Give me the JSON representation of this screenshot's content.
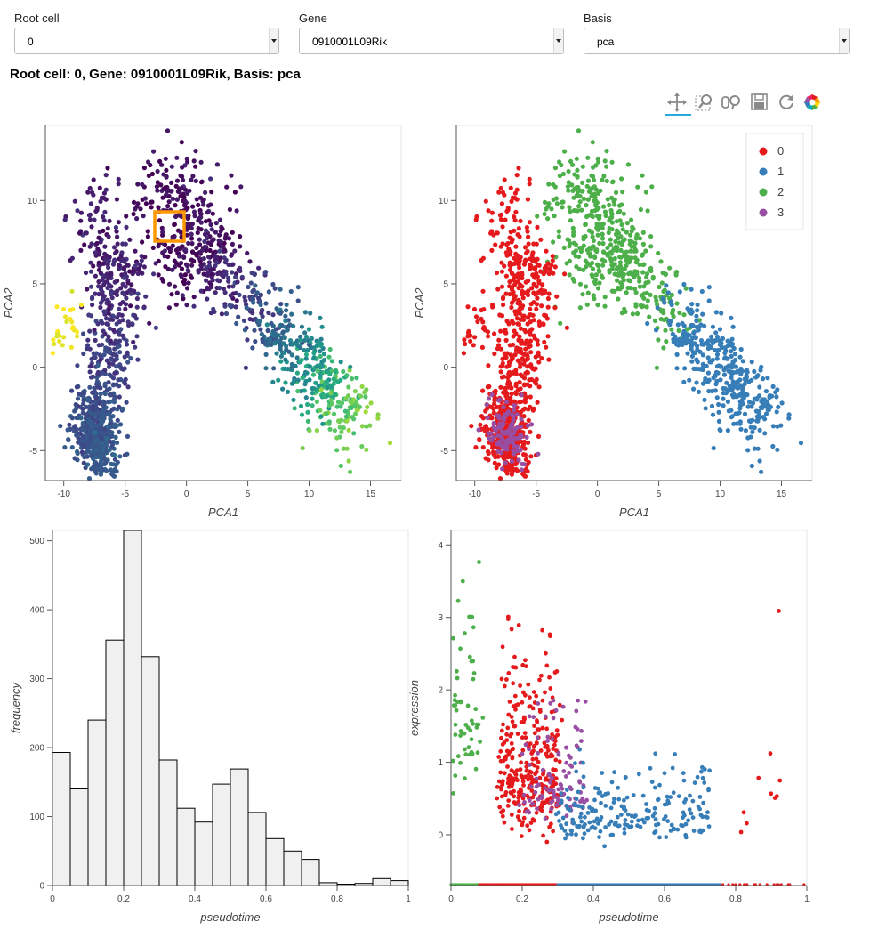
{
  "controls": {
    "root_cell": {
      "label": "Root cell",
      "value": "0"
    },
    "gene": {
      "label": "Gene",
      "value": "0910001L09Rik"
    },
    "basis": {
      "label": "Basis",
      "value": "pca"
    }
  },
  "title": "Root cell: 0, Gene: 0910001L09Rik, Basis: pca",
  "toolbar": {
    "icons": [
      "pan-icon",
      "box-zoom-icon",
      "wheel-zoom-icon",
      "save-icon",
      "reset-icon",
      "bokeh-logo-icon"
    ]
  },
  "colors": {
    "cluster_0": "#e41a1c",
    "cluster_1": "#377eb8",
    "cluster_2": "#4daf4a",
    "cluster_3": "#984ea3",
    "root_marker": "#ff9800",
    "hist_fill": "#f0f0f0"
  },
  "chart_data": [
    {
      "type": "scatter",
      "id": "pca-pseudotime",
      "xlabel": "PCA1",
      "ylabel": "PCA2",
      "xlim": [
        -11.5,
        17.5
      ],
      "ylim": [
        -6.8,
        14.5
      ],
      "xticks": [
        "-10",
        "-5",
        "0",
        "5",
        "10",
        "15"
      ],
      "yticks": [
        "-5",
        "0",
        "5",
        "10"
      ],
      "color_by": "pseudotime (viridis)",
      "root_cell": {
        "x": -1.3,
        "y": 8.3
      }
    },
    {
      "type": "scatter",
      "id": "pca-clusters",
      "xlabel": "PCA1",
      "ylabel": "PCA2",
      "xlim": [
        -11.5,
        17.5
      ],
      "ylim": [
        -6.8,
        14.5
      ],
      "xticks": [
        "-10",
        "-5",
        "0",
        "5",
        "10",
        "15"
      ],
      "yticks": [
        "-5",
        "0",
        "5",
        "10"
      ],
      "legend": [
        "0",
        "1",
        "2",
        "3"
      ],
      "legend_position": "top-right"
    },
    {
      "type": "bar",
      "id": "pseudotime-histogram",
      "xlabel": "pseudotime",
      "ylabel": "frequency",
      "xlim": [
        0,
        1
      ],
      "ylim": [
        0,
        515
      ],
      "xticks": [
        "0",
        "0.2",
        "0.4",
        "0.6",
        "0.8",
        "1"
      ],
      "yticks": [
        "0",
        "100",
        "200",
        "300",
        "400",
        "500"
      ],
      "bin_width": 0.05,
      "values": [
        193,
        140,
        240,
        356,
        515,
        332,
        182,
        112,
        92,
        147,
        169,
        106,
        68,
        50,
        38,
        4,
        2,
        3,
        10,
        7
      ]
    },
    {
      "type": "scatter",
      "id": "expression-vs-pseudotime",
      "xlabel": "pseudotime",
      "ylabel": "expression",
      "xlim": [
        0,
        1
      ],
      "ylim": [
        -0.7,
        4.2
      ],
      "xticks": [
        "0",
        "0.2",
        "0.4",
        "0.6",
        "0.8",
        "1"
      ],
      "yticks": [
        "0",
        "1",
        "2",
        "3",
        "4"
      ]
    }
  ]
}
